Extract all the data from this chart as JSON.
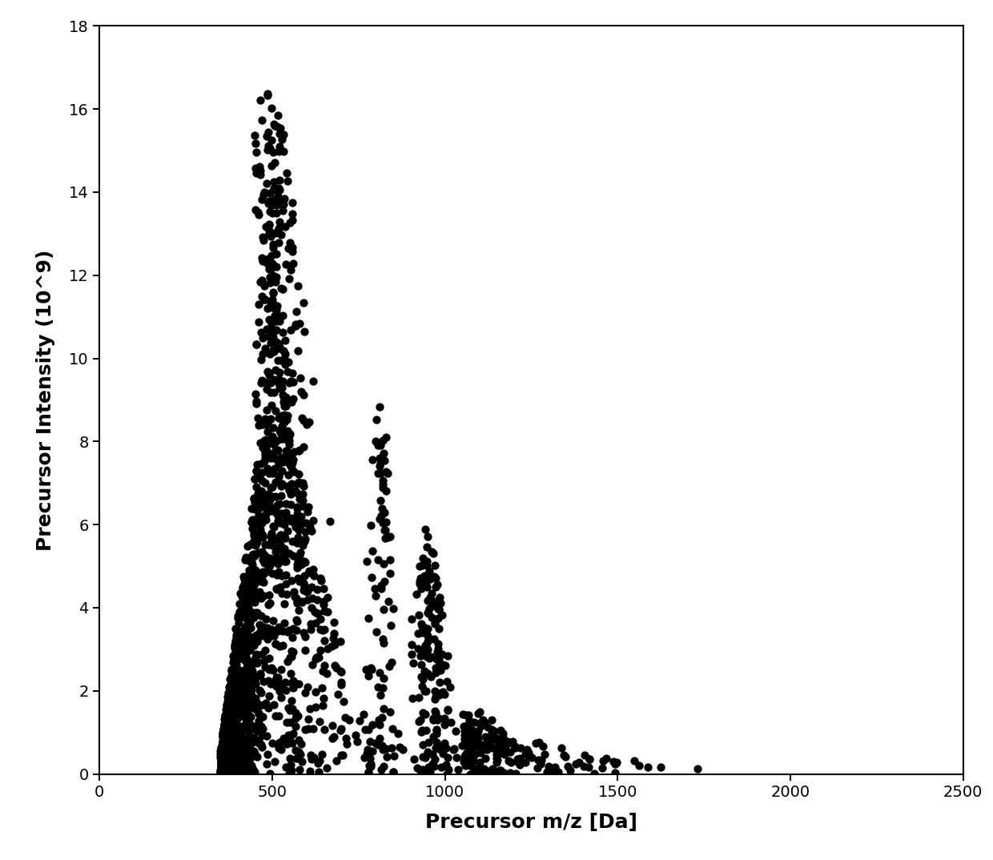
{
  "xlabel": "Precursor m/z [Da]",
  "ylabel": "Precursor Intensity (10^9)",
  "xlim": [
    0,
    2500
  ],
  "ylim": [
    0,
    18
  ],
  "xticks": [
    0,
    500,
    1000,
    1500,
    2000,
    2500
  ],
  "yticks": [
    0,
    2,
    4,
    6,
    8,
    10,
    12,
    14,
    16,
    18
  ],
  "marker_color": "#000000",
  "marker_size": 55,
  "background_color": "#ffffff",
  "random_seed": 42
}
